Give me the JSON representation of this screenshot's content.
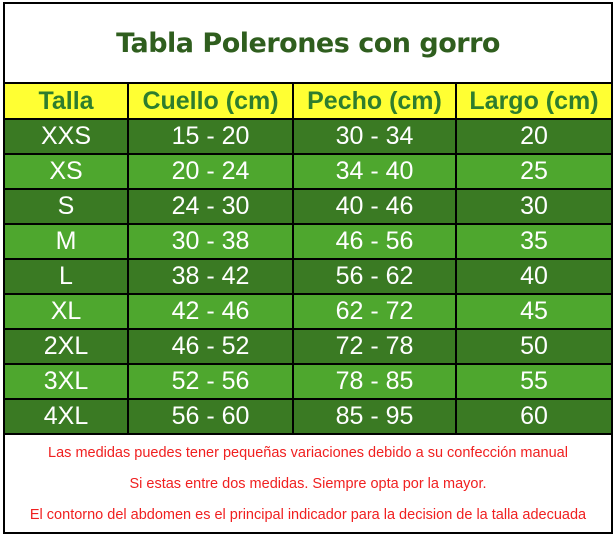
{
  "title": "Tabla Polerones con gorro",
  "headers": [
    "Talla",
    "Cuello (cm)",
    "Pecho (cm)",
    "Largo (cm)"
  ],
  "rows": [
    [
      "XXS",
      "15 - 20",
      "30 - 34",
      "20"
    ],
    [
      "XS",
      "20 - 24",
      "34 - 40",
      "25"
    ],
    [
      "S",
      "24 - 30",
      "40 - 46",
      "30"
    ],
    [
      "M",
      "30 - 38",
      "46 - 56",
      "35"
    ],
    [
      "L",
      "38 - 42",
      "56 - 62",
      "40"
    ],
    [
      "XL",
      "42 - 46",
      "62 - 72",
      "45"
    ],
    [
      "2XL",
      "46 - 52",
      "72 - 78",
      "50"
    ],
    [
      "3XL",
      "52 - 56",
      "78 - 85",
      "55"
    ],
    [
      "4XL",
      "56 - 60",
      "85 - 95",
      "60"
    ]
  ],
  "notes": [
    "Las medidas puedes tener pequeñas variaciones debido a su confección manual",
    "Si estas entre dos medidas. Siempre opta por la mayor.",
    "El contorno del abdomen es el principal indicador para la decision de la talla adecuada"
  ],
  "colors": {
    "header_bg": "#ffff33",
    "row_dark": "#3a7a23",
    "row_light": "#4ea72e",
    "note_text": "#f02020"
  }
}
